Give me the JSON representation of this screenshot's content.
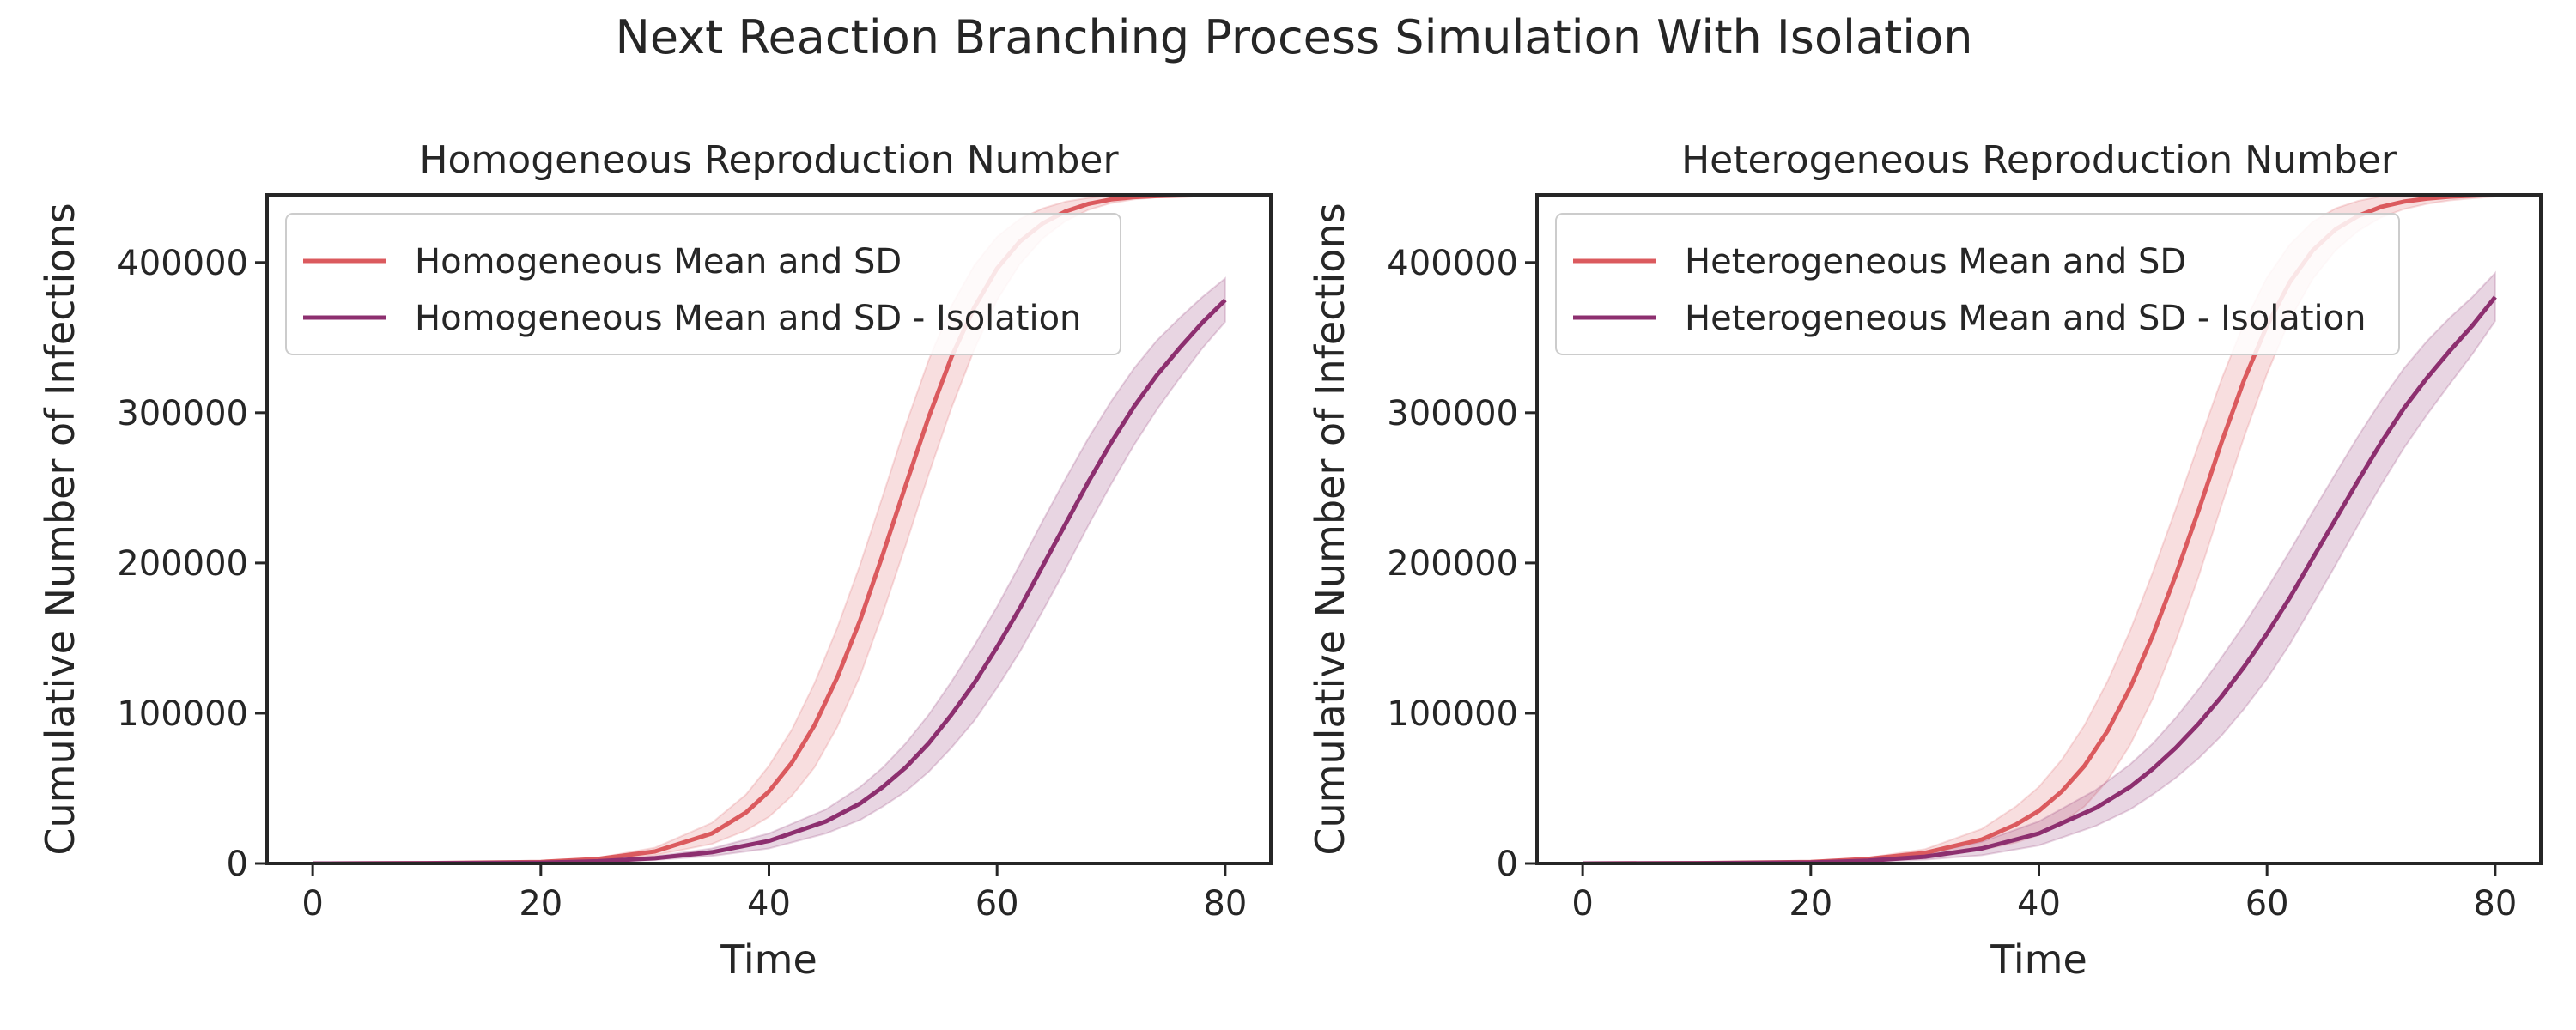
{
  "figure": {
    "suptitle": "Next Reaction Branching Process Simulation With Isolation"
  },
  "colors": {
    "base": "#db5a5e",
    "isolation": "#8d2f6f",
    "axes": "#262626"
  },
  "chart_data": [
    {
      "type": "line",
      "title": "Homogeneous Reproduction Number",
      "xlabel": "Time",
      "ylabel": "Cumulative Number of Infections",
      "xlim": [
        -4,
        84
      ],
      "ylim": [
        0,
        445000
      ],
      "xticks": [
        0,
        20,
        40,
        60,
        80
      ],
      "yticks": [
        0,
        100000,
        200000,
        300000,
        400000
      ],
      "grid": false,
      "legend": "upper-left",
      "series": [
        {
          "name": "Homogeneous Mean and SD",
          "color_key": "base",
          "x": [
            0,
            10,
            20,
            25,
            30,
            35,
            38,
            40,
            42,
            44,
            46,
            48,
            50,
            52,
            54,
            56,
            58,
            60,
            62,
            64,
            66,
            68,
            70,
            72,
            74,
            76,
            78,
            80
          ],
          "mean": [
            0,
            200,
            1000,
            3000,
            8000,
            20000,
            34000,
            48000,
            67000,
            92000,
            124000,
            162000,
            206000,
            252000,
            297000,
            337000,
            370000,
            396000,
            414000,
            426000,
            434000,
            439000,
            442000,
            443500,
            444200,
            444600,
            444800,
            445000
          ],
          "sd": [
            0,
            50,
            300,
            800,
            2500,
            7000,
            12000,
            17000,
            22000,
            28000,
            33000,
            37000,
            39000,
            40000,
            38000,
            34000,
            28000,
            21000,
            15000,
            10000,
            6500,
            4000,
            2500,
            1500,
            900,
            600,
            400,
            300
          ]
        },
        {
          "name": "Homogeneous Mean and SD - Isolation",
          "color_key": "isolation",
          "x": [
            0,
            10,
            20,
            25,
            30,
            35,
            40,
            45,
            48,
            50,
            52,
            54,
            56,
            58,
            60,
            62,
            64,
            66,
            68,
            70,
            72,
            74,
            76,
            78,
            80
          ],
          "mean": [
            0,
            150,
            500,
            1500,
            3500,
            7500,
            15000,
            28000,
            40000,
            51000,
            64000,
            80000,
            99000,
            120000,
            144000,
            170000,
            198000,
            226000,
            254000,
            280000,
            304000,
            325000,
            343000,
            360000,
            375000
          ],
          "sd": [
            0,
            30,
            150,
            400,
            1200,
            2500,
            5000,
            8000,
            11000,
            13000,
            16000,
            19000,
            22000,
            25000,
            27000,
            29000,
            30000,
            30000,
            29000,
            27500,
            25500,
            23000,
            20000,
            17000,
            14500
          ]
        }
      ]
    },
    {
      "type": "line",
      "title": "Heterogeneous Reproduction Number",
      "xlabel": "Time",
      "ylabel": "Cumulative Number of Infections",
      "xlim": [
        -4,
        84
      ],
      "ylim": [
        0,
        445000
      ],
      "xticks": [
        0,
        20,
        40,
        60,
        80
      ],
      "yticks": [
        0,
        100000,
        200000,
        300000,
        400000
      ],
      "grid": false,
      "legend": "upper-left",
      "series": [
        {
          "name": "Heterogeneous Mean and SD",
          "color_key": "base",
          "x": [
            0,
            10,
            20,
            25,
            30,
            35,
            38,
            40,
            42,
            44,
            46,
            48,
            50,
            52,
            54,
            56,
            58,
            60,
            62,
            64,
            66,
            68,
            70,
            72,
            74,
            76,
            78,
            80
          ],
          "mean": [
            0,
            200,
            1000,
            3000,
            7000,
            16000,
            26000,
            35000,
            48000,
            65000,
            88000,
            117000,
            152000,
            192000,
            235000,
            280000,
            322000,
            358000,
            387000,
            408000,
            422000,
            431000,
            437000,
            440500,
            442500,
            443800,
            444500,
            445000
          ],
          "sd": [
            0,
            50,
            300,
            900,
            2500,
            7000,
            12000,
            16000,
            21000,
            27000,
            33000,
            38000,
            42000,
            44000,
            44000,
            42000,
            38000,
            32000,
            25000,
            19000,
            14000,
            10000,
            7000,
            5000,
            3500,
            2500,
            1800,
            1200
          ]
        },
        {
          "name": "Heterogeneous Mean and SD - Isolation",
          "color_key": "isolation",
          "x": [
            0,
            10,
            20,
            25,
            30,
            35,
            40,
            45,
            48,
            50,
            52,
            54,
            56,
            58,
            60,
            62,
            64,
            66,
            68,
            70,
            72,
            74,
            76,
            78,
            80
          ],
          "mean": [
            0,
            150,
            600,
            1800,
            4500,
            10000,
            20000,
            37000,
            51000,
            63000,
            77000,
            93000,
            111000,
            131000,
            153000,
            177000,
            203000,
            229000,
            255000,
            280000,
            303000,
            323000,
            341000,
            358000,
            377000
          ],
          "sd": [
            0,
            40,
            250,
            700,
            2000,
            4500,
            8000,
            12000,
            15000,
            17000,
            20000,
            23000,
            26000,
            28000,
            30000,
            31000,
            31000,
            30500,
            29500,
            28000,
            26500,
            24500,
            22000,
            19000,
            16000
          ]
        }
      ]
    }
  ]
}
